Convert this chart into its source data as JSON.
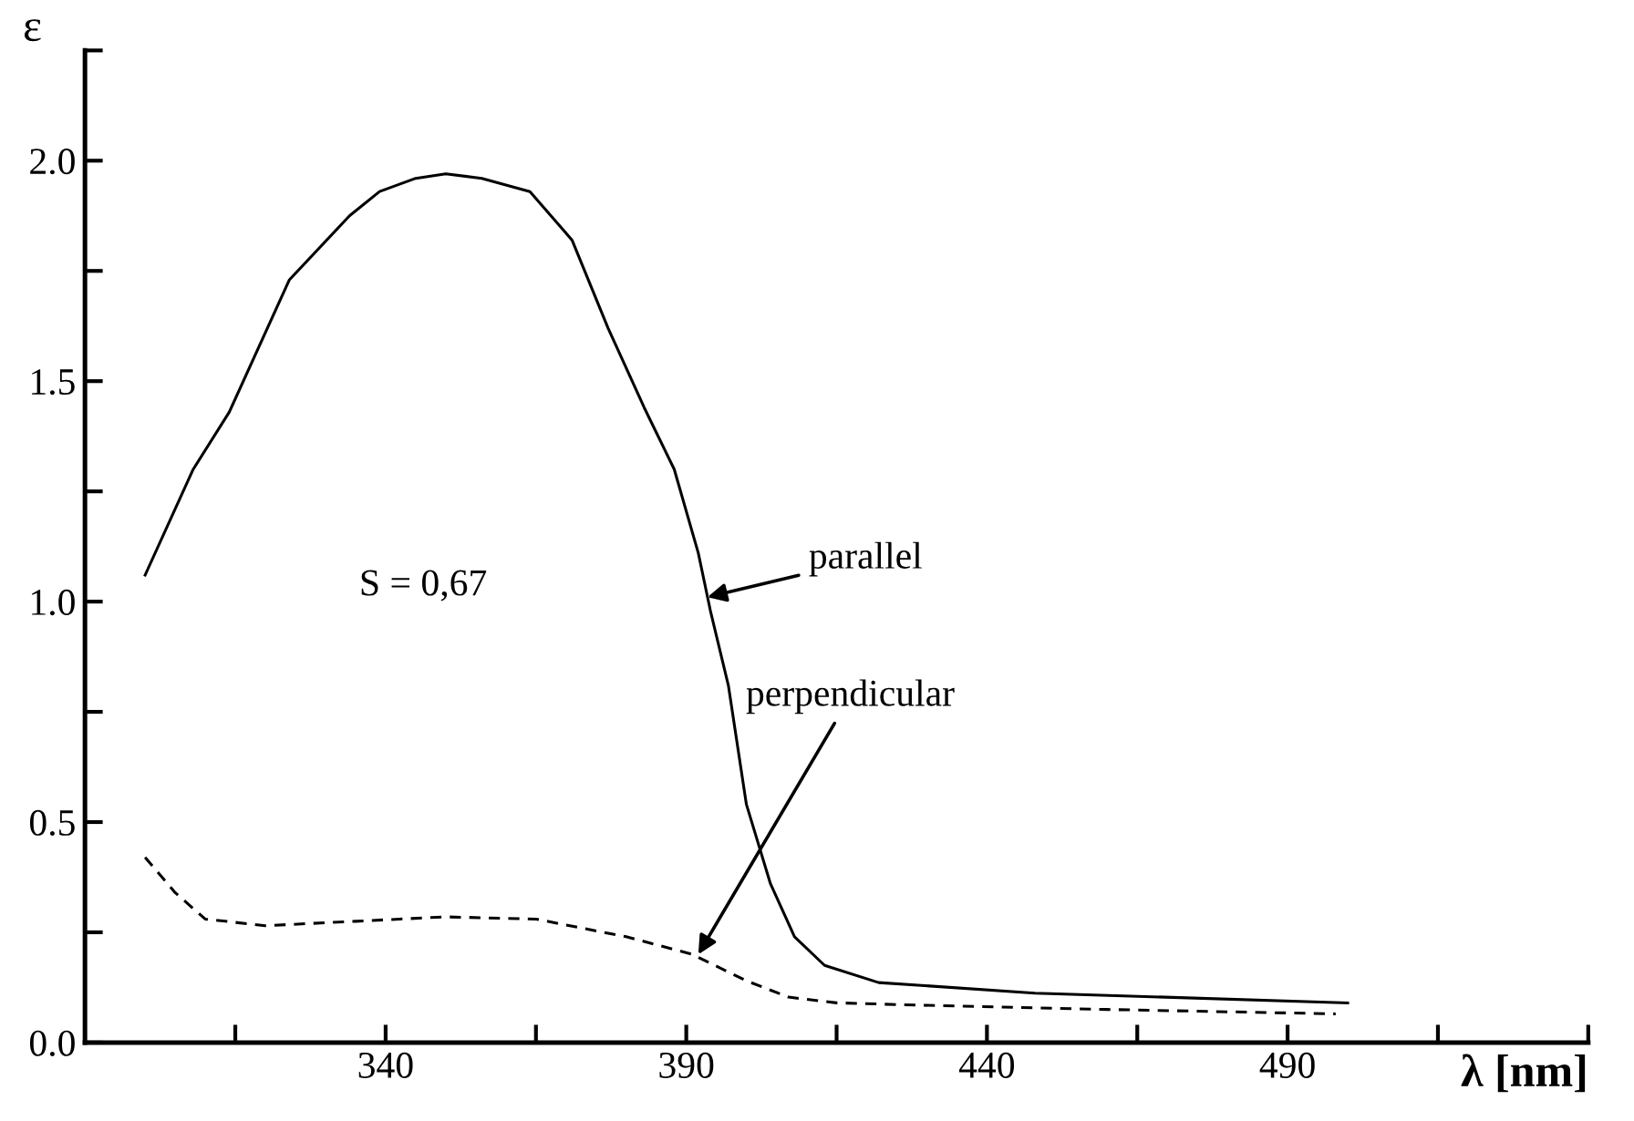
{
  "chart_data": {
    "type": "line",
    "xlabel": "λ [nm]",
    "ylabel": "ε",
    "xlim": [
      290,
      540
    ],
    "ylim": [
      0,
      2.25
    ],
    "xticks": [
      {
        "value": 315,
        "label": null
      },
      340,
      {
        "value": 365,
        "label": null
      },
      390,
      {
        "value": 415,
        "label": null
      },
      440,
      {
        "value": 465,
        "label": null
      },
      490,
      {
        "value": 515,
        "label": null
      },
      {
        "value": 540,
        "label": null
      }
    ],
    "yticks": [
      "0.0",
      {
        "value": 0.25,
        "label": null
      },
      {
        "value": 0.5,
        "label": "0.5"
      },
      {
        "value": 0.75,
        "label": null
      },
      {
        "value": 1.0,
        "label": "1.0"
      },
      {
        "value": 1.25,
        "label": null
      },
      {
        "value": 1.5,
        "label": "1.5"
      },
      {
        "value": 1.75,
        "label": null
      },
      {
        "value": 2.0,
        "label": "2.0"
      },
      {
        "value": 2.25,
        "label": null
      }
    ],
    "grid": false,
    "legend": false,
    "marker": "none",
    "series": [
      {
        "color": "#000000",
        "line_style": "solid",
        "x": [
          300,
          308,
          314,
          324,
          334,
          339,
          345,
          350,
          356,
          364,
          371,
          377,
          383,
          388,
          392,
          394,
          397,
          400,
          404,
          408,
          413,
          422,
          448,
          500
        ],
        "values": [
          1.06,
          1.3,
          1.43,
          1.73,
          1.875,
          1.93,
          1.96,
          1.97,
          1.96,
          1.93,
          1.82,
          1.62,
          1.44,
          1.3,
          1.11,
          0.98,
          0.81,
          0.54,
          0.36,
          0.24,
          0.175,
          0.136,
          0.112,
          0.09
        ]
      },
      {
        "color": "#000000",
        "line_style": "dashed",
        "x": [
          300,
          305,
          310,
          320,
          335,
          350,
          365,
          380,
          391,
          400,
          407,
          415,
          428,
          460,
          498
        ],
        "values": [
          0.42,
          0.34,
          0.28,
          0.265,
          0.275,
          0.285,
          0.28,
          0.24,
          0.2,
          0.14,
          0.103,
          0.09,
          0.085,
          0.075,
          0.065
        ]
      }
    ],
    "annotations": [
      "S = 0,67",
      {
        "text": "parallel",
        "x": 393.5,
        "y": 1.01
      },
      {
        "text": "perpendicular",
        "x": 392,
        "y": 0.2
      }
    ]
  }
}
